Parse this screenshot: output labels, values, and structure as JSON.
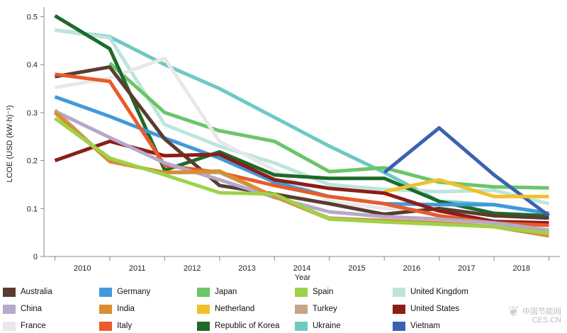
{
  "chart_data": {
    "type": "line",
    "title": "",
    "xlabel": "Year",
    "ylabel": "LCOE (USD (kW·h)⁻¹)",
    "x": [
      2010,
      2011,
      2012,
      2013,
      2014,
      2015,
      2016,
      2017,
      2018
    ],
    "xlim": [
      2009.3,
      2018.7
    ],
    "ylim": [
      0,
      0.52
    ],
    "yticks": [
      0,
      0.1,
      0.2,
      0.3,
      0.4,
      0.5
    ],
    "ytick_labels": [
      "0",
      "0.1",
      "0.2",
      "0.3",
      "0.4",
      "0.5"
    ],
    "legend_position": "bottom",
    "series": [
      {
        "name": "Ukraine",
        "color": "#6ccac2",
        "points": [
          [
            2009.5,
            0.472
          ],
          [
            2010.5,
            0.458
          ],
          [
            2011.5,
            0.4
          ],
          [
            2012.5,
            0.35
          ],
          [
            2013.5,
            0.29
          ],
          [
            2014.5,
            0.23
          ],
          [
            2015.5,
            0.175
          ],
          [
            2016.5,
            0.115
          ],
          [
            2017.5,
            0.108
          ],
          [
            2018.5,
            0.09
          ]
        ]
      },
      {
        "name": "United Kingdom",
        "color": "#bde5dd",
        "points": [
          [
            2009.5,
            0.472
          ],
          [
            2010.5,
            0.456
          ],
          [
            2011.5,
            0.275
          ],
          [
            2012.5,
            0.23
          ],
          [
            2013.5,
            0.195
          ],
          [
            2014.5,
            0.15
          ],
          [
            2015.5,
            0.14
          ],
          [
            2016.5,
            0.135
          ],
          [
            2017.5,
            0.138
          ],
          [
            2018.5,
            0.11
          ]
        ]
      },
      {
        "name": "Japan",
        "color": "#6ac669",
        "points": [
          [
            2010.5,
            0.403
          ],
          [
            2011.5,
            0.3
          ],
          [
            2012.5,
            0.262
          ],
          [
            2013.5,
            0.24
          ],
          [
            2014.5,
            0.177
          ],
          [
            2015.5,
            0.185
          ],
          [
            2016.5,
            0.155
          ],
          [
            2017.5,
            0.145
          ],
          [
            2018.5,
            0.143
          ]
        ]
      },
      {
        "name": "France",
        "color": "#e8e8e8",
        "points": [
          [
            2009.5,
            0.352
          ],
          [
            2010.5,
            0.372
          ],
          [
            2011.5,
            0.413
          ],
          [
            2012.5,
            0.24
          ],
          [
            2013.5,
            0.18
          ],
          [
            2014.5,
            0.115
          ],
          [
            2015.5,
            0.1
          ],
          [
            2016.5,
            0.095
          ],
          [
            2017.5,
            0.09
          ],
          [
            2018.5,
            0.085
          ]
        ]
      },
      {
        "name": "Republic of Korea",
        "color": "#1d6a2a",
        "points": [
          [
            2009.5,
            0.502
          ],
          [
            2010.5,
            0.433
          ],
          [
            2011.5,
            0.18
          ],
          [
            2012.5,
            0.218
          ],
          [
            2013.5,
            0.17
          ],
          [
            2014.5,
            0.163
          ],
          [
            2015.5,
            0.163
          ],
          [
            2016.5,
            0.115
          ],
          [
            2017.5,
            0.09
          ],
          [
            2018.5,
            0.085
          ]
        ]
      },
      {
        "name": "Germany",
        "color": "#4199db",
        "points": [
          [
            2009.5,
            0.333
          ],
          [
            2010.5,
            0.292
          ],
          [
            2011.5,
            0.247
          ],
          [
            2012.5,
            0.205
          ],
          [
            2013.5,
            0.155
          ],
          [
            2014.5,
            0.125
          ],
          [
            2015.5,
            0.11
          ],
          [
            2016.5,
            0.108
          ],
          [
            2017.5,
            0.108
          ],
          [
            2018.5,
            0.09
          ]
        ]
      },
      {
        "name": "Vietnam",
        "color": "#3a62ae",
        "points": [
          [
            2015.5,
            0.175
          ],
          [
            2016.5,
            0.268
          ],
          [
            2017.5,
            0.17
          ],
          [
            2018.5,
            0.085
          ]
        ]
      },
      {
        "name": "Netherland",
        "color": "#f1c02b",
        "points": [
          [
            2015.5,
            0.135
          ],
          [
            2016.5,
            0.16
          ],
          [
            2017.5,
            0.125
          ],
          [
            2018.5,
            0.125
          ]
        ]
      },
      {
        "name": "Australia",
        "color": "#5a3d30",
        "points": [
          [
            2009.5,
            0.375
          ],
          [
            2010.5,
            0.395
          ],
          [
            2011.5,
            0.245
          ],
          [
            2012.5,
            0.148
          ],
          [
            2013.5,
            0.13
          ],
          [
            2014.5,
            0.11
          ],
          [
            2015.5,
            0.088
          ],
          [
            2016.5,
            0.1
          ],
          [
            2017.5,
            0.085
          ],
          [
            2018.5,
            0.08
          ]
        ]
      },
      {
        "name": "United States",
        "color": "#8b1e17",
        "points": [
          [
            2009.5,
            0.2
          ],
          [
            2010.5,
            0.24
          ],
          [
            2011.5,
            0.21
          ],
          [
            2012.5,
            0.213
          ],
          [
            2013.5,
            0.16
          ],
          [
            2014.5,
            0.142
          ],
          [
            2015.5,
            0.132
          ],
          [
            2016.5,
            0.095
          ],
          [
            2017.5,
            0.073
          ],
          [
            2018.5,
            0.07
          ]
        ]
      },
      {
        "name": "Italy",
        "color": "#ea5a2a",
        "points": [
          [
            2009.5,
            0.38
          ],
          [
            2010.5,
            0.365
          ],
          [
            2011.5,
            0.19
          ],
          [
            2012.5,
            0.175
          ],
          [
            2013.5,
            0.148
          ],
          [
            2014.5,
            0.125
          ],
          [
            2015.5,
            0.11
          ],
          [
            2016.5,
            0.085
          ],
          [
            2017.5,
            0.07
          ],
          [
            2018.5,
            0.065
          ]
        ]
      },
      {
        "name": "China",
        "color": "#b5a9c9",
        "points": [
          [
            2009.5,
            0.303
          ],
          [
            2010.5,
            0.248
          ],
          [
            2011.5,
            0.195
          ],
          [
            2012.5,
            0.16
          ],
          [
            2013.5,
            0.123
          ],
          [
            2014.5,
            0.093
          ],
          [
            2015.5,
            0.083
          ],
          [
            2016.5,
            0.078
          ],
          [
            2017.5,
            0.07
          ],
          [
            2018.5,
            0.055
          ]
        ]
      },
      {
        "name": "Turkey",
        "color": "#c7a584",
        "points": [
          [
            2009.5,
            0.305
          ],
          [
            2010.5,
            0.198
          ],
          [
            2011.5,
            0.175
          ],
          [
            2012.5,
            0.175
          ],
          [
            2013.5,
            0.125
          ],
          [
            2014.5,
            0.08
          ],
          [
            2015.5,
            0.075
          ],
          [
            2016.5,
            0.07
          ],
          [
            2017.5,
            0.062
          ],
          [
            2018.5,
            0.05
          ]
        ]
      },
      {
        "name": "India",
        "color": "#d88e30",
        "points": [
          [
            2009.5,
            0.3
          ],
          [
            2010.5,
            0.198
          ],
          [
            2011.5,
            0.175
          ],
          [
            2012.5,
            0.178
          ],
          [
            2013.5,
            0.125
          ],
          [
            2014.5,
            0.078
          ],
          [
            2015.5,
            0.075
          ],
          [
            2016.5,
            0.07
          ],
          [
            2017.5,
            0.062
          ],
          [
            2018.5,
            0.043
          ]
        ]
      },
      {
        "name": "Spain",
        "color": "#9ed24a",
        "points": [
          [
            2009.5,
            0.288
          ],
          [
            2010.5,
            0.205
          ],
          [
            2011.5,
            0.17
          ],
          [
            2012.5,
            0.133
          ],
          [
            2013.5,
            0.13
          ],
          [
            2014.5,
            0.078
          ],
          [
            2015.5,
            0.072
          ],
          [
            2016.5,
            0.067
          ],
          [
            2017.5,
            0.062
          ],
          [
            2018.5,
            0.048
          ]
        ]
      }
    ]
  },
  "legend": [
    {
      "name": "Australia",
      "color": "#5a3d30"
    },
    {
      "name": "Germany",
      "color": "#4199db"
    },
    {
      "name": "Japan",
      "color": "#6ac669"
    },
    {
      "name": "Spain",
      "color": "#9ed24a"
    },
    {
      "name": "United Kingdom",
      "color": "#bde5dd"
    },
    {
      "name": "China",
      "color": "#b5a9c9"
    },
    {
      "name": "India",
      "color": "#d88e30"
    },
    {
      "name": "Netherland",
      "color": "#f1c02b"
    },
    {
      "name": "Turkey",
      "color": "#c7a584"
    },
    {
      "name": "United States",
      "color": "#8b1e17"
    },
    {
      "name": "France",
      "color": "#e8e8e8"
    },
    {
      "name": "Italy",
      "color": "#ea5a2a"
    },
    {
      "name": "Republic of Korea",
      "color": "#1d6a2a"
    },
    {
      "name": "Ukraine",
      "color": "#6ccac2"
    },
    {
      "name": "Vietnam",
      "color": "#3a62ae"
    }
  ],
  "watermark": {
    "line1": "中国节能网",
    "line2": "CES.CN"
  }
}
